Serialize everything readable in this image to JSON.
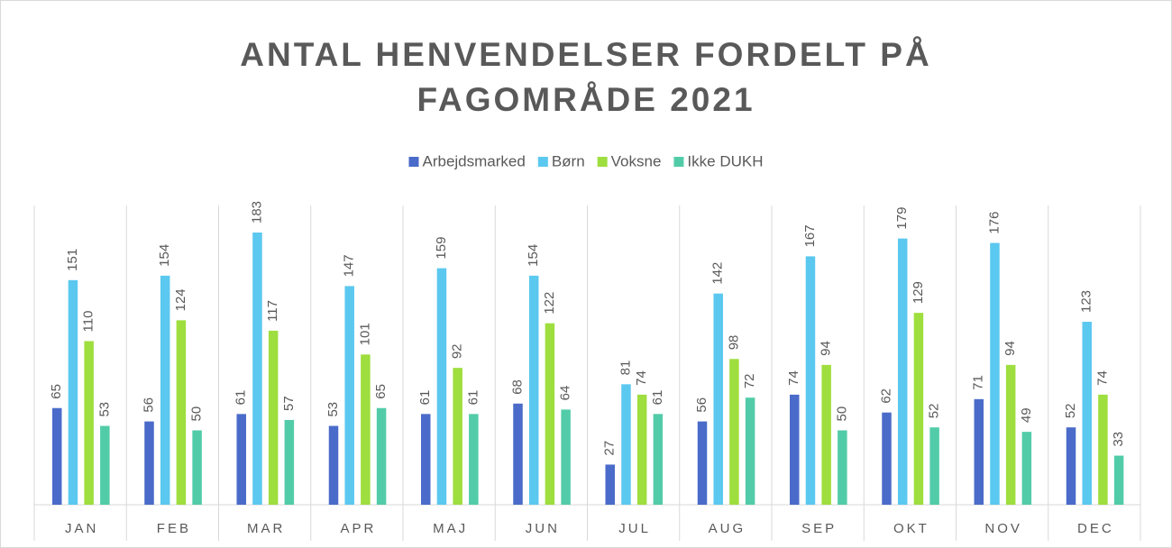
{
  "chart_data": {
    "type": "bar",
    "title": "ANTAL HENVENDELSER FORDELT PÅ FAGOMRÅDE 2021",
    "categories": [
      "JAN",
      "FEB",
      "MAR",
      "APR",
      "MAJ",
      "JUN",
      "JUL",
      "AUG",
      "SEP",
      "OKT",
      "NOV",
      "DEC"
    ],
    "series": [
      {
        "name": "Arbejdsmarked",
        "color": "#4a6bc9",
        "values": [
          65,
          56,
          61,
          53,
          61,
          68,
          27,
          56,
          74,
          62,
          71,
          52
        ]
      },
      {
        "name": "Børn",
        "color": "#5bc8f0",
        "values": [
          151,
          154,
          183,
          147,
          159,
          154,
          81,
          142,
          167,
          179,
          176,
          123
        ]
      },
      {
        "name": "Voksne",
        "color": "#9ede3e",
        "values": [
          110,
          124,
          117,
          101,
          92,
          122,
          74,
          98,
          94,
          129,
          94,
          74
        ]
      },
      {
        "name": "Ikke DUKH",
        "color": "#52cca8",
        "values": [
          53,
          50,
          57,
          65,
          61,
          64,
          61,
          72,
          50,
          52,
          49,
          33
        ]
      }
    ],
    "legend": "top"
  }
}
